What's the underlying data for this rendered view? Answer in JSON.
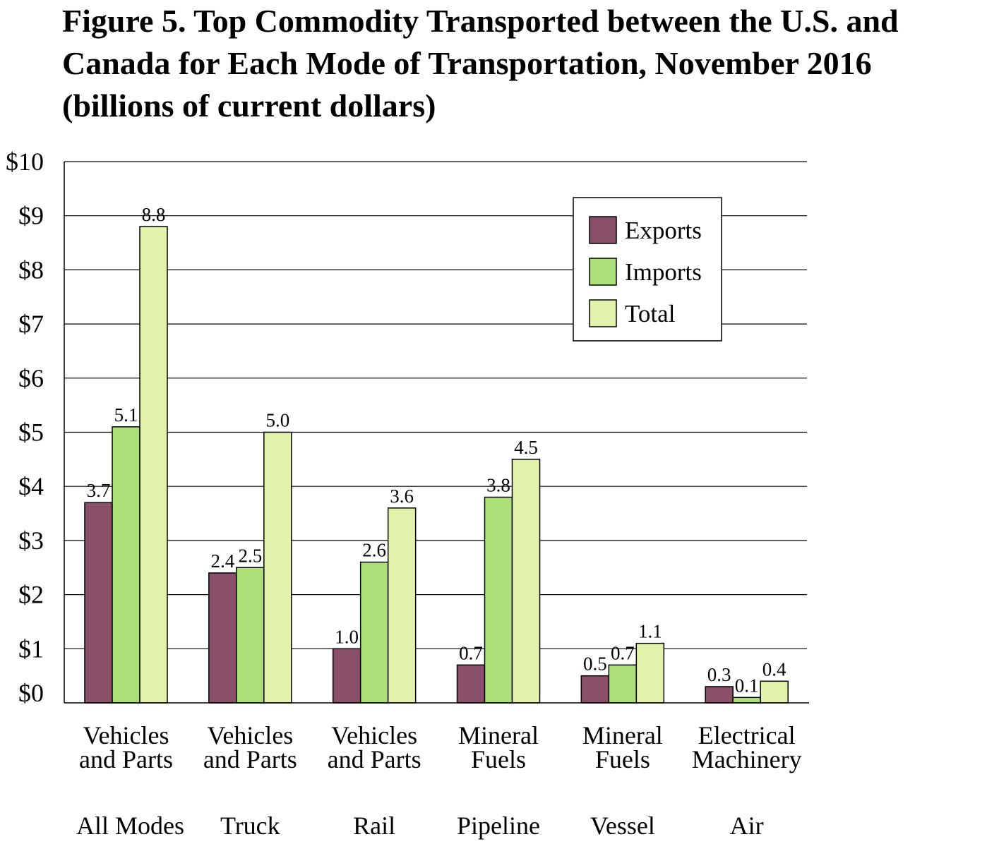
{
  "chart_data": {
    "type": "bar",
    "title": "Figure 5. Top Commodity Transported between the U.S. and\nCanada for Each Mode of Transportation, November 2016\n(billions of current dollars)",
    "categories": [
      {
        "commodity": [
          "Vehicles",
          "and Parts"
        ],
        "mode": "All Modes"
      },
      {
        "commodity": [
          "Vehicles",
          "and Parts"
        ],
        "mode": "Truck"
      },
      {
        "commodity": [
          "Vehicles",
          "and Parts"
        ],
        "mode": "Rail"
      },
      {
        "commodity": [
          "Mineral",
          "Fuels"
        ],
        "mode": "Pipeline"
      },
      {
        "commodity": [
          "Mineral",
          "Fuels"
        ],
        "mode": "Vessel"
      },
      {
        "commodity": [
          "Electrical",
          "Machinery"
        ],
        "mode": "Air"
      }
    ],
    "series": [
      {
        "name": "Exports",
        "color": "#8B5069",
        "values": [
          3.7,
          2.4,
          1.0,
          0.7,
          0.5,
          0.3
        ],
        "labels": [
          "3.7",
          "2.4",
          "1.0",
          "0.7",
          "0.5",
          "0.3"
        ]
      },
      {
        "name": "Imports",
        "color": "#ADDF78",
        "values": [
          5.1,
          2.5,
          2.6,
          3.8,
          0.7,
          0.1
        ],
        "labels": [
          "5.1",
          "2.5",
          "2.6",
          "3.8",
          "0.7",
          "0.1"
        ]
      },
      {
        "name": "Total",
        "color": "#E2F2AA",
        "values": [
          8.8,
          5.0,
          3.6,
          4.5,
          1.1,
          0.4
        ],
        "labels": [
          "8.8",
          "5.0",
          "3.6",
          "4.5",
          "1.1",
          "0.4"
        ]
      }
    ],
    "yticks": [
      {
        "value": 0,
        "label": "$0"
      },
      {
        "value": 1,
        "label": "$1"
      },
      {
        "value": 2,
        "label": "$2"
      },
      {
        "value": 3,
        "label": "$3"
      },
      {
        "value": 4,
        "label": "$4"
      },
      {
        "value": 5,
        "label": "$5"
      },
      {
        "value": 6,
        "label": "$6"
      },
      {
        "value": 7,
        "label": "$7"
      },
      {
        "value": 8,
        "label": "$8"
      },
      {
        "value": 9,
        "label": "$9"
      },
      {
        "value": 10,
        "label": "$10"
      }
    ],
    "ylim": [
      0,
      10
    ],
    "xlabel": "",
    "ylabel": "",
    "grid": true,
    "legend_position": "top-right"
  }
}
